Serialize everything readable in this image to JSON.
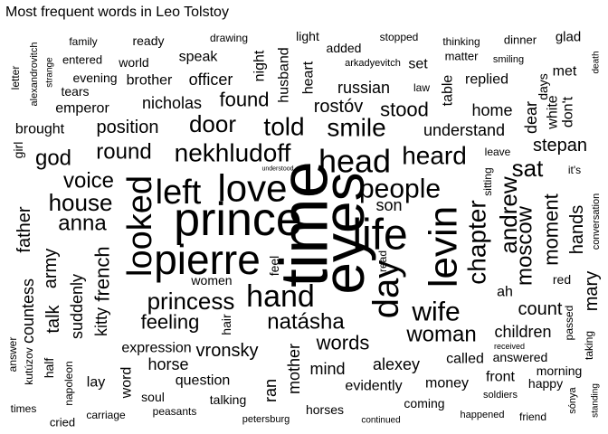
{
  "chart_data": {
    "type": "wordcloud",
    "title": "Most frequent words in Leo Tolstoy",
    "words": [
      {
        "text": "time",
        "weight": 100
      },
      {
        "text": "prince",
        "weight": 86
      },
      {
        "text": "eyes",
        "weight": 84
      },
      {
        "text": "life",
        "weight": 66
      },
      {
        "text": "pierre",
        "weight": 64
      },
      {
        "text": "levin",
        "weight": 60
      },
      {
        "text": "love",
        "weight": 58
      },
      {
        "text": "looked",
        "weight": 56
      },
      {
        "text": "left",
        "weight": 54
      },
      {
        "text": "head",
        "weight": 52
      },
      {
        "text": "day",
        "weight": 50
      },
      {
        "text": "hand",
        "weight": 50
      },
      {
        "text": "people",
        "weight": 46
      },
      {
        "text": "nekhludoff",
        "weight": 44
      },
      {
        "text": "told",
        "weight": 40
      },
      {
        "text": "princess",
        "weight": 38
      },
      {
        "text": "smile",
        "weight": 38
      },
      {
        "text": "chapter",
        "weight": 38
      },
      {
        "text": "wife",
        "weight": 36
      },
      {
        "text": "heard",
        "weight": 36
      },
      {
        "text": "door",
        "weight": 34
      },
      {
        "text": "house",
        "weight": 34
      },
      {
        "text": "andrew",
        "weight": 32
      },
      {
        "text": "round",
        "weight": 32
      },
      {
        "text": "anna",
        "weight": 32
      },
      {
        "text": "sat",
        "weight": 32
      },
      {
        "text": "moscow",
        "weight": 30
      },
      {
        "text": "natásha",
        "weight": 30
      },
      {
        "text": "voice",
        "weight": 30
      },
      {
        "text": "woman",
        "weight": 30
      },
      {
        "text": "moment",
        "weight": 30
      },
      {
        "text": "feeling",
        "weight": 28
      },
      {
        "text": "god",
        "weight": 28
      },
      {
        "text": "hands",
        "weight": 28
      },
      {
        "text": "words",
        "weight": 28
      },
      {
        "text": "french",
        "weight": 28
      },
      {
        "text": "father",
        "weight": 26
      },
      {
        "text": "count",
        "weight": 26
      },
      {
        "text": "army",
        "weight": 26
      },
      {
        "text": "found",
        "weight": 26
      },
      {
        "text": "stood",
        "weight": 26
      },
      {
        "text": "rostóv",
        "weight": 24
      },
      {
        "text": "position",
        "weight": 24
      },
      {
        "text": "stepan",
        "weight": 24
      },
      {
        "text": "mary",
        "weight": 24
      },
      {
        "text": "countess",
        "weight": 22
      },
      {
        "text": "kitty",
        "weight": 22
      },
      {
        "text": "suddenly",
        "weight": 22
      },
      {
        "text": "understand",
        "weight": 22
      },
      {
        "text": "mind",
        "weight": 22
      },
      {
        "text": "alexey",
        "weight": 22
      },
      {
        "text": "talk",
        "weight": 22
      },
      {
        "text": "vronsky",
        "weight": 22
      },
      {
        "text": "son",
        "weight": 22
      },
      {
        "text": "dear",
        "weight": 22
      },
      {
        "text": "home",
        "weight": 22
      },
      {
        "text": "mother",
        "weight": 22
      },
      {
        "text": "nicholas",
        "weight": 20
      },
      {
        "text": "russian",
        "weight": 20
      },
      {
        "text": "officer",
        "weight": 20
      },
      {
        "text": "brother",
        "weight": 20
      },
      {
        "text": "horse",
        "weight": 20
      },
      {
        "text": "expression",
        "weight": 20
      },
      {
        "text": "children",
        "weight": 20
      },
      {
        "text": "money",
        "weight": 20
      },
      {
        "text": "ran",
        "weight": 20
      },
      {
        "text": "heart",
        "weight": 20
      },
      {
        "text": "husband",
        "weight": 20
      },
      {
        "text": "night",
        "weight": 20
      },
      {
        "text": "white",
        "weight": 20
      },
      {
        "text": "don't",
        "weight": 20
      },
      {
        "text": "table",
        "weight": 20
      },
      {
        "text": "lay",
        "weight": 20
      },
      {
        "text": "emperor",
        "weight": 18
      },
      {
        "text": "brought",
        "weight": 18
      },
      {
        "text": "replied",
        "weight": 18
      },
      {
        "text": "women",
        "weight": 18
      },
      {
        "text": "question",
        "weight": 18
      },
      {
        "text": "soul",
        "weight": 18
      },
      {
        "text": "word",
        "weight": 18
      },
      {
        "text": "evidently",
        "weight": 18
      },
      {
        "text": "called",
        "weight": 18
      },
      {
        "text": "front",
        "weight": 18
      },
      {
        "text": "world",
        "weight": 16
      },
      {
        "text": "speak",
        "weight": 16
      },
      {
        "text": "set",
        "weight": 16
      },
      {
        "text": "met",
        "weight": 16
      },
      {
        "text": "ah",
        "weight": 16
      },
      {
        "text": "days",
        "weight": 16
      },
      {
        "text": "girl",
        "weight": 16
      },
      {
        "text": "light",
        "weight": 16
      },
      {
        "text": "feel",
        "weight": 16
      },
      {
        "text": "hair",
        "weight": 16
      },
      {
        "text": "answered",
        "weight": 16
      },
      {
        "text": "sitting",
        "weight": 16
      },
      {
        "text": "taking",
        "weight": 16
      },
      {
        "text": "passed",
        "weight": 16
      },
      {
        "text": "half",
        "weight": 16
      },
      {
        "text": "red",
        "weight": 14
      },
      {
        "text": "horses",
        "weight": 14
      },
      {
        "text": "coming",
        "weight": 14
      },
      {
        "text": "talking",
        "weight": 14
      },
      {
        "text": "morning",
        "weight": 14
      },
      {
        "text": "happy",
        "weight": 14
      },
      {
        "text": "read",
        "weight": 14
      },
      {
        "text": "tears",
        "weight": 14
      },
      {
        "text": "evening",
        "weight": 14
      },
      {
        "text": "matter",
        "weight": 14
      },
      {
        "text": "added",
        "weight": 14
      },
      {
        "text": "ready",
        "weight": 14
      },
      {
        "text": "family",
        "weight": 14
      },
      {
        "text": "entered",
        "weight": 14
      },
      {
        "text": "glad",
        "weight": 14
      },
      {
        "text": "dinner",
        "weight": 14
      },
      {
        "text": "stopped",
        "weight": 14
      },
      {
        "text": "thinking",
        "weight": 14
      },
      {
        "text": "drawing",
        "weight": 13
      },
      {
        "text": "leave",
        "weight": 13
      },
      {
        "text": "law",
        "weight": 13
      },
      {
        "text": "it's",
        "weight": 14
      },
      {
        "text": "peasants",
        "weight": 13
      },
      {
        "text": "carriage",
        "weight": 13
      },
      {
        "text": "friend",
        "weight": 13
      },
      {
        "text": "soldiers",
        "weight": 12
      },
      {
        "text": "continued",
        "weight": 12
      },
      {
        "text": "happened",
        "weight": 12
      },
      {
        "text": "petersburg",
        "weight": 12
      },
      {
        "text": "cried",
        "weight": 14
      },
      {
        "text": "times",
        "weight": 13
      },
      {
        "text": "napoleon",
        "weight": 13
      },
      {
        "text": "kutúzov",
        "weight": 13
      },
      {
        "text": "answer",
        "weight": 13
      },
      {
        "text": "letter",
        "weight": 13
      },
      {
        "text": "alexandrovitch",
        "weight": 12
      },
      {
        "text": "strange",
        "weight": 12
      },
      {
        "text": "arkadyevitch",
        "weight": 12
      },
      {
        "text": "smiling",
        "weight": 12
      },
      {
        "text": "death",
        "weight": 12
      },
      {
        "text": "conversation",
        "weight": 12
      },
      {
        "text": "sónya",
        "weight": 12
      },
      {
        "text": "standing",
        "weight": 11
      },
      {
        "text": "received",
        "weight": 11
      },
      {
        "text": "understood",
        "weight": 9
      }
    ]
  }
}
